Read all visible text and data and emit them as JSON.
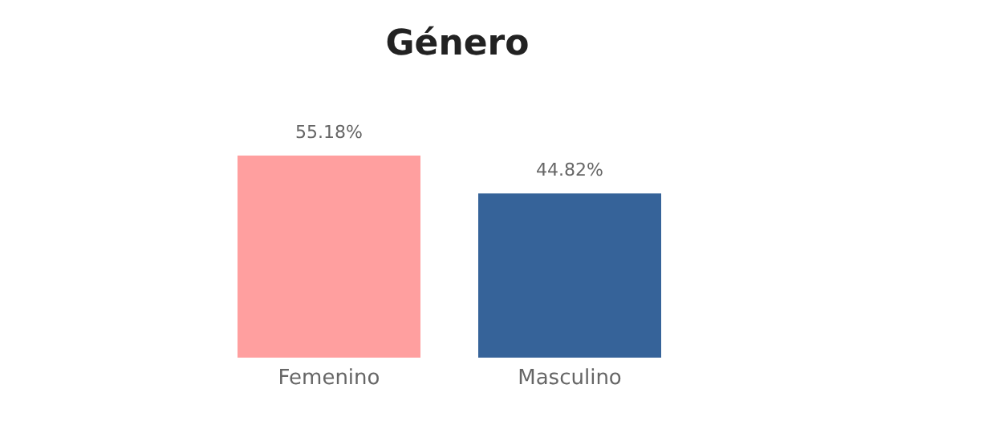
{
  "chart_data": {
    "type": "bar",
    "title": "Género",
    "categories": [
      "Femenino",
      "Masculino"
    ],
    "values": [
      55.18,
      44.82
    ],
    "colors": [
      "#ff9f9f",
      "#366399"
    ],
    "value_labels": [
      "55.18%",
      "44.82%"
    ]
  }
}
